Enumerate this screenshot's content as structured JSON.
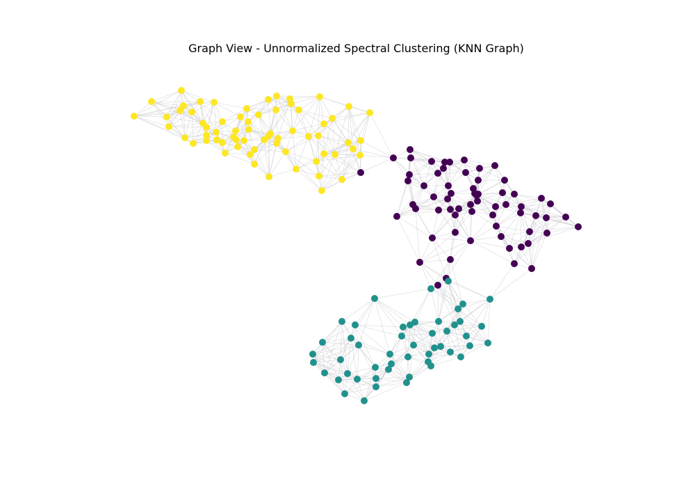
{
  "title": "Graph View - Unnormalized Spectral Clustering (KNN Graph)",
  "colors": {
    "edge": "#bdbdc6",
    "cluster_0": "#440154",
    "cluster_1": "#21918c",
    "cluster_2": "#fde725"
  },
  "chart_data": {
    "type": "scatter",
    "title": "Graph View - Unnormalized Spectral Clustering (KNN Graph)",
    "xlabel": "",
    "ylabel": "",
    "axes_visible": false,
    "grid": false,
    "legend": "none",
    "knn_k": 10,
    "xlim": [
      170,
      850
    ],
    "ylim": [
      590,
      115
    ],
    "clusters": [
      {
        "label": 2,
        "color": "#fde725",
        "x": [
          193,
          218,
          240,
          243,
          259,
          261,
          264,
          266,
          276,
          278,
          288,
          292,
          297,
          297,
          297,
          308,
          311,
          312,
          320,
          320,
          324,
          336,
          339,
          340,
          342,
          346,
          351,
          355,
          357,
          358,
          360,
          366,
          366,
          372,
          380,
          386,
          386,
          387,
          389,
          397,
          398,
          398,
          400,
          411,
          417,
          419,
          421,
          426,
          430,
          444,
          455,
          458,
          459,
          460,
          463,
          466,
          466,
          478,
          482,
          492,
          501,
          502,
          508,
          518,
          519,
          532
        ],
        "y": [
          167,
          146,
          168,
          182,
          159,
          130,
          152,
          198,
          161,
          206,
          146,
          177,
          202,
          183,
          194,
          147,
          190,
          201,
          205,
          175,
          220,
          197,
          188,
          201,
          211,
          168,
          202,
          156,
          175,
          186,
          222,
          236,
          215,
          165,
          201,
          196,
          143,
          254,
          192,
          158,
          138,
          206,
          199,
          218,
          142,
          149,
          188,
          243,
          158,
          196,
          232,
          195,
          253,
          139,
          274,
          178,
          221,
          170,
          222,
          258,
          205,
          153,
          214,
          223,
          202,
          162
        ]
      },
      {
        "label": 0,
        "color": "#440154",
        "x": [
          519,
          566,
          571,
          587,
          589,
          590,
          591,
          594,
          598,
          604,
          610,
          621,
          622,
          624,
          630,
          630,
          631,
          638,
          640,
          642,
          644,
          645,
          647,
          648,
          648,
          649,
          655,
          655,
          660,
          668,
          670,
          677,
          677,
          679,
          681,
          683,
          686,
          687,
          688,
          688,
          690,
          709,
          712,
          713,
          714,
          721,
          723,
          726,
          728,
          733,
          740,
          740,
          749,
          750,
          750,
          760,
          762,
          765,
          771,
          779,
          786,
          787,
          792,
          814,
          832
        ],
        "y": [
          248,
          227,
          311,
          260,
          251,
          215,
          227,
          294,
          300,
          377,
          267,
          232,
          342,
          283,
          410,
          249,
          302,
          242,
          233,
          400,
          286,
          267,
          233,
          373,
          301,
          278,
          309,
          334,
          300,
          230,
          248,
          294,
          346,
          304,
          271,
          278,
          281,
          289,
          259,
          279,
          242,
          309,
          238,
          297,
          325,
          340,
          277,
          259,
          294,
          357,
          279,
          379,
          306,
          297,
          355,
          350,
          333,
          386,
          310,
          285,
          313,
          335,
          293,
          312,
          326
        ]
      },
      {
        "label": 1,
        "color": "#21918c",
        "x": [
          450,
          451,
          464,
          467,
          487,
          490,
          492,
          496,
          500,
          505,
          511,
          514,
          516,
          524,
          539,
          540,
          541,
          541,
          559,
          561,
          563,
          578,
          580,
          585,
          587,
          589,
          590,
          595,
          597,
          616,
          617,
          620,
          620,
          622,
          625,
          631,
          634,
          643,
          645,
          648,
          654,
          659,
          662,
          663,
          666,
          671,
          676,
          693,
          702,
          705
        ],
        "y": [
          509,
          521,
          492,
          536,
          546,
          517,
          462,
          566,
          537,
          486,
          467,
          545,
          496,
          576,
          429,
          528,
          544,
          556,
          531,
          509,
          523,
          483,
          470,
          550,
          513,
          542,
          467,
          496,
          463,
          520,
          509,
          415,
          526,
          479,
          500,
          462,
          498,
          476,
          404,
          506,
          467,
          444,
          462,
          513,
          437,
          483,
          497,
          469,
          493,
          430
        ]
      }
    ]
  }
}
